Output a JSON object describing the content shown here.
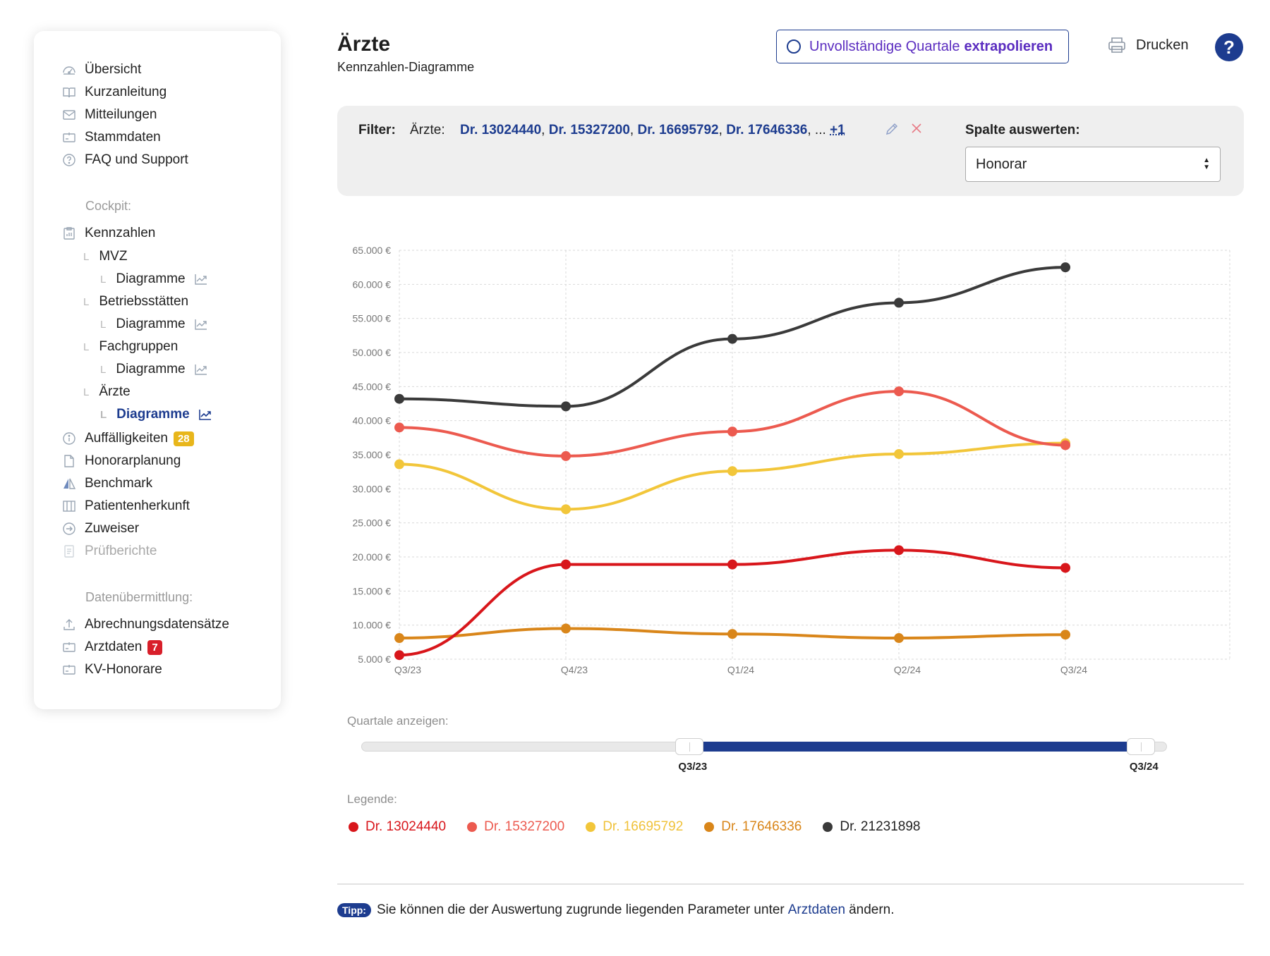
{
  "sidebar": {
    "nav_top": [
      {
        "label": "Übersicht",
        "icon": "dashboard-icon"
      },
      {
        "label": "Kurzanleitung",
        "icon": "book-icon"
      },
      {
        "label": "Mitteilungen",
        "icon": "mail-icon"
      },
      {
        "label": "Stammdaten",
        "icon": "id-card-icon"
      },
      {
        "label": "FAQ und Support",
        "icon": "question-circle-icon"
      }
    ],
    "section_cockpit": "Cockpit:",
    "kennzahlen": "Kennzahlen",
    "sub": {
      "mvz": "MVZ",
      "betriebsstaetten": "Betriebsstätten",
      "fachgruppen": "Fachgruppen",
      "aerzte": "Ärzte",
      "diagramme": "Diagramme"
    },
    "nav_cockpit": [
      {
        "label": "Auffälligkeiten",
        "icon": "info-circle-icon",
        "badge": "28"
      },
      {
        "label": "Honorarplanung",
        "icon": "document-icon"
      },
      {
        "label": "Benchmark",
        "icon": "benchmark-icon"
      },
      {
        "label": "Patientenherkunft",
        "icon": "map-icon"
      },
      {
        "label": "Zuweiser",
        "icon": "arrow-circle-icon"
      },
      {
        "label": "Prüfberichte",
        "icon": "report-icon",
        "disabled": true
      }
    ],
    "section_data": "Datenübermittlung:",
    "nav_data": [
      {
        "label": "Abrechnungsdatensätze",
        "icon": "upload-icon"
      },
      {
        "label": "Arztdaten",
        "icon": "id-card-icon",
        "badge": "7"
      },
      {
        "label": "KV-Honorare",
        "icon": "id-card-icon"
      }
    ]
  },
  "header": {
    "title": "Ärzte",
    "subtitle": "Kennzahlen-Diagramme",
    "extrapolate_label": "Unvollständige Quartale",
    "extrapolate_bold": "extrapolieren",
    "print_label": "Drucken",
    "help_label": "?"
  },
  "filter": {
    "label": "Filter:",
    "kind": "Ärzte:",
    "values": [
      "Dr. 13024440",
      "Dr. 15327200",
      "Dr. 16695792",
      "Dr. 17646336"
    ],
    "ellipsis": ", ... ",
    "more": "+1",
    "column_label": "Spalte auswerten:",
    "column_value": "Honorar"
  },
  "chart_data": {
    "type": "line",
    "categories": [
      "Q3/23",
      "Q4/23",
      "Q1/24",
      "Q2/24",
      "Q3/24"
    ],
    "y_ticks": [
      "5.000 €",
      "10.000 €",
      "15.000 €",
      "20.000 €",
      "25.000 €",
      "30.000 €",
      "35.000 €",
      "40.000 €",
      "45.000 €",
      "50.000 €",
      "55.000 €",
      "60.000 €",
      "65.000 €"
    ],
    "ylim": [
      5000,
      65000
    ],
    "y_step": 5000,
    "grid": true,
    "series": [
      {
        "name": "Dr. 13024440",
        "color": "#d8161b",
        "values": [
          5600,
          18900,
          18900,
          21000,
          18400
        ]
      },
      {
        "name": "Dr. 15327200",
        "color": "#ec5a4f",
        "values": [
          39000,
          34800,
          38400,
          44300,
          36400
        ]
      },
      {
        "name": "Dr. 16695792",
        "color": "#f2c63a",
        "values": [
          33600,
          27000,
          32600,
          35100,
          36700
        ]
      },
      {
        "name": "Dr. 17646336",
        "color": "#d9861a",
        "values": [
          8100,
          9500,
          8700,
          8100,
          8600
        ]
      },
      {
        "name": "Dr. 21231898",
        "color": "#3a3a3a",
        "values": [
          43200,
          42100,
          52000,
          57300,
          62500
        ]
      }
    ]
  },
  "range": {
    "label": "Quartale anzeigen:",
    "from": "Q3/23",
    "to": "Q3/24",
    "from_fraction": 0.425,
    "to_fraction": 0.985
  },
  "legend": {
    "label": "Legende:"
  },
  "tip": {
    "badge": "Tipp:",
    "before": "Sie können die der Auswertung zugrunde liegenden Parameter unter",
    "link": "Arztdaten",
    "after": "ändern."
  },
  "colors": {
    "accent": "#1d3c8f",
    "badge_yellow": "#e8b61b",
    "badge_red": "#d81f2a"
  }
}
